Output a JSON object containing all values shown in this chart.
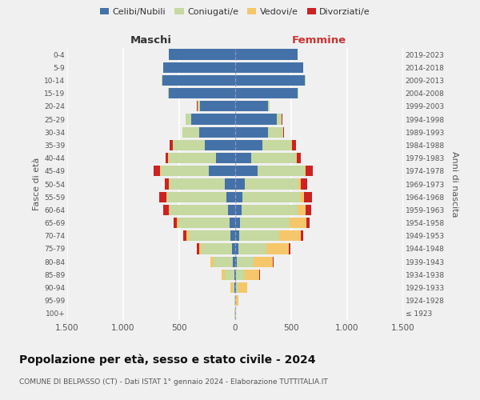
{
  "age_groups": [
    "100+",
    "95-99",
    "90-94",
    "85-89",
    "80-84",
    "75-79",
    "70-74",
    "65-69",
    "60-64",
    "55-59",
    "50-54",
    "45-49",
    "40-44",
    "35-39",
    "30-34",
    "25-29",
    "20-24",
    "15-19",
    "10-14",
    "5-9",
    "0-4"
  ],
  "birth_years": [
    "≤ 1923",
    "1924-1928",
    "1929-1933",
    "1934-1938",
    "1939-1943",
    "1944-1948",
    "1949-1953",
    "1954-1958",
    "1959-1963",
    "1964-1968",
    "1969-1973",
    "1974-1978",
    "1979-1983",
    "1984-1988",
    "1989-1993",
    "1994-1998",
    "1999-2003",
    "2004-2008",
    "2009-2013",
    "2014-2018",
    "2019-2023"
  ],
  "maschi": {
    "celibi": [
      2,
      2,
      5,
      10,
      20,
      30,
      40,
      50,
      65,
      78,
      95,
      235,
      175,
      275,
      325,
      395,
      315,
      595,
      650,
      645,
      590
    ],
    "coniugati": [
      2,
      5,
      20,
      80,
      170,
      275,
      375,
      460,
      520,
      530,
      490,
      430,
      420,
      280,
      150,
      50,
      20,
      5,
      5,
      0,
      0
    ],
    "vedovi": [
      0,
      2,
      15,
      30,
      30,
      20,
      20,
      15,
      10,
      5,
      5,
      5,
      5,
      0,
      0,
      0,
      0,
      0,
      0,
      0,
      0
    ],
    "divorziati": [
      0,
      0,
      0,
      5,
      5,
      15,
      30,
      25,
      45,
      65,
      42,
      58,
      25,
      32,
      0,
      0,
      5,
      0,
      0,
      0,
      0
    ]
  },
  "femmine": {
    "nubili": [
      2,
      2,
      5,
      10,
      15,
      25,
      35,
      45,
      55,
      65,
      85,
      200,
      145,
      240,
      290,
      370,
      295,
      560,
      620,
      610,
      560
    ],
    "coniugate": [
      2,
      5,
      20,
      75,
      150,
      250,
      360,
      440,
      500,
      510,
      480,
      420,
      400,
      260,
      140,
      45,
      15,
      5,
      5,
      0,
      0
    ],
    "vedove": [
      5,
      25,
      80,
      130,
      170,
      200,
      190,
      150,
      70,
      40,
      20,
      10,
      5,
      5,
      0,
      0,
      0,
      0,
      0,
      0,
      0
    ],
    "divorziate": [
      0,
      0,
      0,
      5,
      10,
      15,
      25,
      30,
      55,
      70,
      60,
      65,
      35,
      35,
      5,
      5,
      0,
      0,
      0,
      0,
      0
    ]
  },
  "colors": {
    "celibi": "#4472a8",
    "coniugati": "#c5d9a0",
    "vedovi": "#f5c76a",
    "divorziati": "#cc2222"
  },
  "xlim": 1500,
  "title": "Popolazione per età, sesso e stato civile - 2024",
  "subtitle": "COMUNE DI BELPASSO (CT) - Dati ISTAT 1° gennaio 2024 - Elaborazione TUTTITALIA.IT",
  "label_maschi": "Maschi",
  "label_femmine": "Femmine",
  "ylabel_left": "Fasce di età",
  "ylabel_right": "Anni di nascita",
  "bg_color": "#f0f0f0",
  "legend": [
    "Celibi/Nubili",
    "Coniugati/e",
    "Vedovi/e",
    "Divorziati/e"
  ]
}
